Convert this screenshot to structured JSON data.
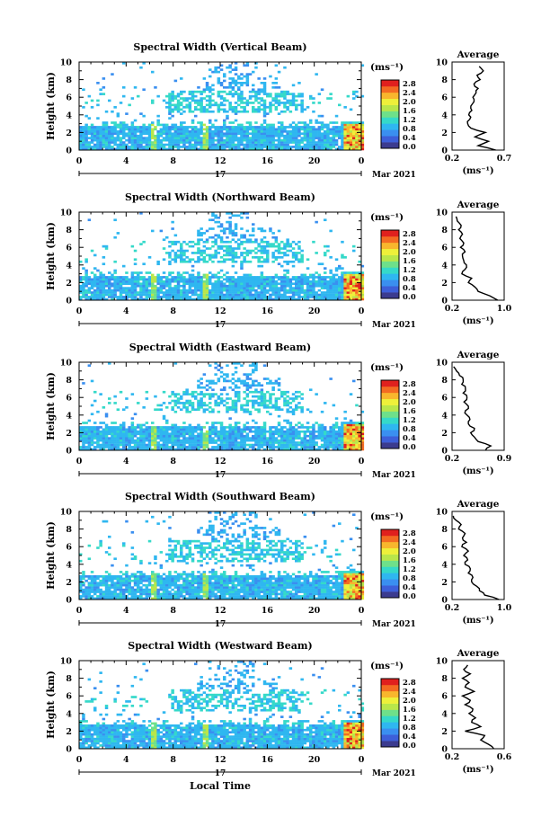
{
  "colors": {
    "colorbar": [
      "#3b3b8f",
      "#3d5fd9",
      "#3a8ff0",
      "#2fb7f0",
      "#35d9c9",
      "#6ee08a",
      "#b9e64a",
      "#eef03a",
      "#f8b62d",
      "#f36b22",
      "#e0201e"
    ]
  },
  "shared": {
    "x_ticks": [
      "0",
      "4",
      "8",
      "12",
      "16",
      "20",
      "0"
    ],
    "y_ticks": [
      "0",
      "2",
      "4",
      "6",
      "8",
      "10"
    ],
    "ylabel": "Height (km)",
    "units": "(ms⁻¹)",
    "cb_ticks": [
      "2.8",
      "2.4",
      "2.0",
      "1.6",
      "1.2",
      "0.8",
      "0.4",
      "0.0"
    ],
    "day_label": "17",
    "month_label": "Mar 2021",
    "avg_title": "Average",
    "avg_xlabel": "(ms⁻¹)",
    "xlabel": "Local Time"
  },
  "chart_data": [
    {
      "type": "heatmap",
      "title": "Spectral Width (Vertical Beam)",
      "xlim": [
        0,
        24
      ],
      "ylim": [
        0,
        10
      ],
      "avg": {
        "type": "line",
        "xlim": [
          0.2,
          0.7
        ],
        "xticks": [
          "0.2",
          "0.7"
        ],
        "height": [
          0,
          0.5,
          1,
          1.5,
          2,
          2.5,
          3,
          3.5,
          4,
          4.5,
          5,
          5.5,
          6,
          6.5,
          7,
          7.5,
          8,
          8.5,
          9,
          9.5
        ],
        "value": [
          0.62,
          0.45,
          0.55,
          0.42,
          0.52,
          0.38,
          0.35,
          0.37,
          0.36,
          0.39,
          0.38,
          0.41,
          0.4,
          0.43,
          0.45,
          0.41,
          0.47,
          0.44,
          0.5,
          0.46
        ]
      }
    },
    {
      "type": "heatmap",
      "title": "Spectral Width (Northward Beam)",
      "xlim": [
        0,
        24
      ],
      "ylim": [
        0,
        10
      ],
      "avg": {
        "type": "line",
        "xlim": [
          0.2,
          1.0
        ],
        "xticks": [
          "0.2",
          "1.0"
        ],
        "height": [
          0,
          0.5,
          1,
          1.5,
          2,
          2.5,
          3,
          3.5,
          4,
          4.5,
          5,
          5.5,
          6,
          6.5,
          7,
          7.5,
          8,
          8.5,
          9,
          9.5
        ],
        "value": [
          0.9,
          0.78,
          0.6,
          0.55,
          0.45,
          0.5,
          0.35,
          0.4,
          0.42,
          0.38,
          0.36,
          0.4,
          0.33,
          0.38,
          0.32,
          0.36,
          0.3,
          0.34,
          0.28,
          0.26
        ]
      }
    },
    {
      "type": "heatmap",
      "title": "Spectral Width (Eastward Beam)",
      "xlim": [
        0,
        24
      ],
      "ylim": [
        0,
        10
      ],
      "avg": {
        "type": "line",
        "xlim": [
          0.2,
          0.9
        ],
        "xticks": [
          "0.2",
          "0.9"
        ],
        "height": [
          0,
          0.5,
          1,
          1.5,
          2,
          2.5,
          3,
          3.5,
          4,
          4.5,
          5,
          5.5,
          6,
          6.5,
          7,
          7.5,
          8,
          8.5,
          9,
          9.5
        ],
        "value": [
          0.65,
          0.72,
          0.55,
          0.5,
          0.45,
          0.5,
          0.42,
          0.44,
          0.4,
          0.38,
          0.42,
          0.36,
          0.4,
          0.35,
          0.38,
          0.33,
          0.35,
          0.3,
          0.26,
          0.22
        ]
      }
    },
    {
      "type": "heatmap",
      "title": "Spectral Width (Southward Beam)",
      "xlim": [
        0,
        24
      ],
      "ylim": [
        0,
        10
      ],
      "avg": {
        "type": "line",
        "xlim": [
          0.2,
          1.0
        ],
        "xticks": [
          "0.2",
          "1.0"
        ],
        "height": [
          0,
          0.5,
          1,
          1.5,
          2,
          2.5,
          3,
          3.5,
          4,
          4.5,
          5,
          5.5,
          6,
          6.5,
          7,
          7.5,
          8,
          8.5,
          9,
          9.5
        ],
        "value": [
          0.92,
          0.7,
          0.62,
          0.58,
          0.5,
          0.52,
          0.45,
          0.48,
          0.4,
          0.44,
          0.38,
          0.45,
          0.35,
          0.42,
          0.36,
          0.4,
          0.3,
          0.34,
          0.26,
          0.22
        ]
      }
    },
    {
      "type": "heatmap",
      "title": "Spectral Width (Westward Beam)",
      "xlim": [
        0,
        24
      ],
      "ylim": [
        0,
        10
      ],
      "avg": {
        "type": "line",
        "xlim": [
          0.2,
          0.6
        ],
        "xticks": [
          "0.2",
          "0.6"
        ],
        "height": [
          0,
          0.5,
          1,
          1.5,
          2,
          2.5,
          3,
          3.5,
          4,
          4.5,
          5,
          5.5,
          6,
          6.5,
          7,
          7.5,
          8,
          8.5,
          9,
          9.5
        ],
        "value": [
          0.52,
          0.48,
          0.42,
          0.45,
          0.3,
          0.42,
          0.35,
          0.38,
          0.33,
          0.36,
          0.3,
          0.34,
          0.28,
          0.37,
          0.3,
          0.33,
          0.28,
          0.34,
          0.29,
          0.32
        ]
      }
    }
  ]
}
